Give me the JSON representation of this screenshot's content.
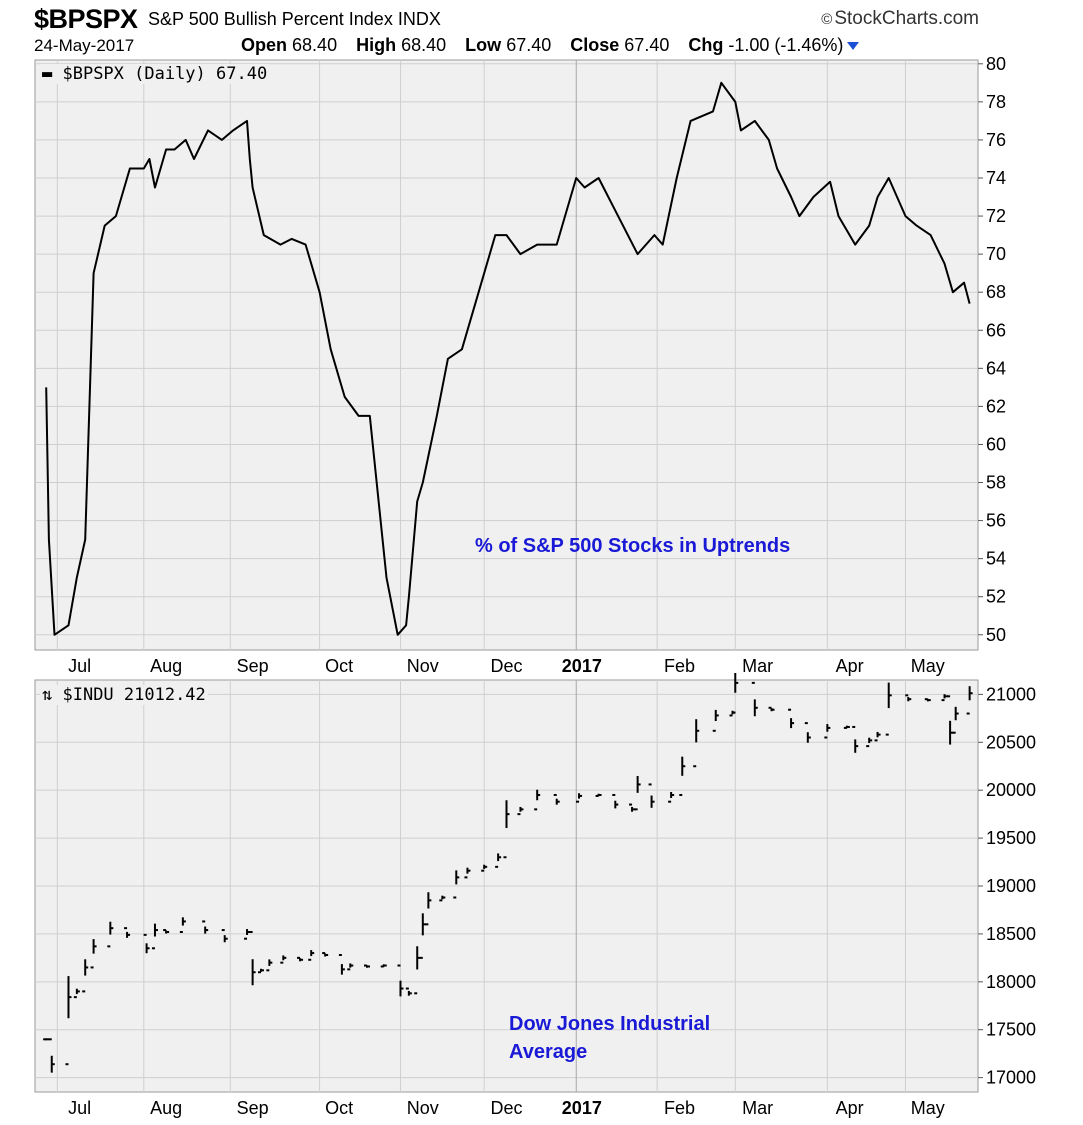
{
  "header": {
    "symbol": "$BPSPX",
    "description": "S&P 500 Bullish Percent Index",
    "exchange": "INDX",
    "brand": "StockCharts.com",
    "date": "24-May-2017",
    "open_label": "Open",
    "open_value": "68.40",
    "high_label": "High",
    "high_value": "68.40",
    "low_label": "Low",
    "low_value": "67.40",
    "close_label": "Close",
    "close_value": "67.40",
    "chg_label": "Chg",
    "chg_value": "-1.00 (-1.46%)",
    "arrow_icon": "down-triangle-icon",
    "arrow_color": "#1a4fd6"
  },
  "colors": {
    "plot_bg": "#f0f0f0",
    "grid": "#cfcfcf",
    "line": "#000000",
    "annotation": "#1a1ad6"
  },
  "chart_data": [
    {
      "type": "line",
      "legend": "$BPSPX (Daily) 67.40",
      "annotation": "% of S&P 500 Stocks in Uptrends",
      "x_tick_labels": [
        "Jul",
        "Aug",
        "Sep",
        "Oct",
        "Nov",
        "Dec",
        "2017",
        "Feb",
        "Mar",
        "Apr",
        "May"
      ],
      "y_ticks": [
        50,
        52,
        54,
        56,
        58,
        60,
        62,
        64,
        66,
        68,
        70,
        72,
        74,
        76,
        78,
        80
      ],
      "ylim": [
        49.2,
        80.2
      ],
      "grid": true,
      "x": [
        "2016-06-27",
        "2016-06-28",
        "2016-06-30",
        "2016-07-05",
        "2016-07-08",
        "2016-07-11",
        "2016-07-14",
        "2016-07-18",
        "2016-07-22",
        "2016-07-27",
        "2016-08-01",
        "2016-08-03",
        "2016-08-05",
        "2016-08-09",
        "2016-08-12",
        "2016-08-16",
        "2016-08-19",
        "2016-08-24",
        "2016-08-29",
        "2016-09-02",
        "2016-09-07",
        "2016-09-08",
        "2016-09-09",
        "2016-09-13",
        "2016-09-19",
        "2016-09-23",
        "2016-09-28",
        "2016-10-03",
        "2016-10-07",
        "2016-10-12",
        "2016-10-17",
        "2016-10-21",
        "2016-10-27",
        "2016-10-31",
        "2016-11-03",
        "2016-11-04",
        "2016-11-07",
        "2016-11-09",
        "2016-11-14",
        "2016-11-18",
        "2016-11-23",
        "2016-11-30",
        "2016-12-05",
        "2016-12-09",
        "2016-12-14",
        "2016-12-20",
        "2016-12-27",
        "2017-01-03",
        "2017-01-06",
        "2017-01-11",
        "2017-01-18",
        "2017-01-25",
        "2017-01-31",
        "2017-02-03",
        "2017-02-08",
        "2017-02-13",
        "2017-02-21",
        "2017-02-24",
        "2017-03-01",
        "2017-03-03",
        "2017-03-08",
        "2017-03-13",
        "2017-03-16",
        "2017-03-21",
        "2017-03-24",
        "2017-03-29",
        "2017-04-04",
        "2017-04-07",
        "2017-04-13",
        "2017-04-18",
        "2017-04-21",
        "2017-04-25",
        "2017-05-01",
        "2017-05-05",
        "2017-05-10",
        "2017-05-15",
        "2017-05-18",
        "2017-05-22",
        "2017-05-24"
      ],
      "values": [
        63.0,
        55.0,
        50.0,
        50.5,
        53.0,
        55.0,
        69.0,
        71.5,
        72.0,
        74.5,
        74.5,
        75.0,
        73.5,
        75.5,
        75.5,
        76.0,
        75.0,
        76.5,
        76.0,
        76.5,
        77.0,
        75.0,
        73.5,
        71.0,
        70.5,
        70.8,
        70.5,
        68.0,
        65.0,
        62.5,
        61.5,
        61.5,
        53.0,
        50.0,
        50.5,
        52.0,
        57.0,
        58.0,
        61.5,
        64.5,
        65.0,
        68.5,
        71.0,
        71.0,
        70.0,
        70.5,
        70.5,
        74.0,
        73.5,
        74.0,
        72.0,
        70.0,
        71.0,
        70.5,
        74.0,
        77.0,
        77.5,
        79.0,
        78.0,
        76.5,
        77.0,
        76.0,
        74.5,
        73.0,
        72.0,
        73.0,
        73.8,
        72.0,
        70.5,
        71.5,
        73.0,
        74.0,
        72.0,
        71.5,
        71.0,
        69.5,
        68.0,
        68.5,
        67.4
      ]
    },
    {
      "type": "bar",
      "legend": "$INDU 21012.42",
      "annotation": "Dow Jones Industrial Average",
      "x_tick_labels": [
        "Jul",
        "Aug",
        "Sep",
        "Oct",
        "Nov",
        "Dec",
        "2017",
        "Feb",
        "Mar",
        "Apr",
        "May"
      ],
      "y_ticks": [
        17000,
        17500,
        18000,
        18500,
        19000,
        19500,
        20000,
        20500,
        21000
      ],
      "ylim": [
        16850,
        21150
      ],
      "grid": true,
      "x": [
        "2016-06-27",
        "2016-06-29",
        "2016-07-05",
        "2016-07-08",
        "2016-07-11",
        "2016-07-14",
        "2016-07-20",
        "2016-07-26",
        "2016-08-02",
        "2016-08-05",
        "2016-08-09",
        "2016-08-15",
        "2016-08-23",
        "2016-08-30",
        "2016-09-07",
        "2016-09-09",
        "2016-09-12",
        "2016-09-15",
        "2016-09-20",
        "2016-09-26",
        "2016-09-30",
        "2016-10-05",
        "2016-10-11",
        "2016-10-14",
        "2016-10-20",
        "2016-10-26",
        "2016-11-01",
        "2016-11-04",
        "2016-11-07",
        "2016-11-09",
        "2016-11-11",
        "2016-11-16",
        "2016-11-21",
        "2016-11-25",
        "2016-12-01",
        "2016-12-06",
        "2016-12-09",
        "2016-12-14",
        "2016-12-20",
        "2016-12-27",
        "2017-01-04",
        "2017-01-11",
        "2017-01-17",
        "2017-01-23",
        "2017-01-25",
        "2017-01-30",
        "2017-02-06",
        "2017-02-10",
        "2017-02-15",
        "2017-02-22",
        "2017-02-28",
        "2017-03-01",
        "2017-03-08",
        "2017-03-14",
        "2017-03-21",
        "2017-03-27",
        "2017-04-03",
        "2017-04-10",
        "2017-04-13",
        "2017-04-18",
        "2017-04-21",
        "2017-04-25",
        "2017-05-02",
        "2017-05-09",
        "2017-05-15",
        "2017-05-17",
        "2017-05-19",
        "2017-05-24"
      ],
      "values": [
        17400,
        17140,
        17840,
        17900,
        18150,
        18370,
        18560,
        18490,
        18350,
        18540,
        18520,
        18630,
        18540,
        18450,
        18520,
        18100,
        18120,
        18200,
        18250,
        18230,
        18300,
        18280,
        18130,
        18170,
        18160,
        18170,
        17930,
        17880,
        18250,
        18600,
        18850,
        18880,
        19090,
        19160,
        19200,
        19300,
        19750,
        19800,
        19950,
        19880,
        19940,
        19950,
        19850,
        19800,
        20060,
        19880,
        19950,
        20250,
        20620,
        20780,
        20810,
        21120,
        20860,
        20840,
        20700,
        20550,
        20650,
        20660,
        20460,
        20520,
        20580,
        20990,
        20950,
        20940,
        20980,
        20600,
        20800,
        21012
      ]
    }
  ]
}
